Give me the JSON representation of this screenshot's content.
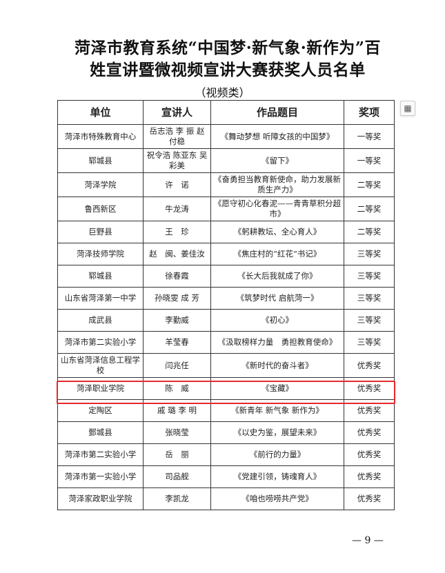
{
  "title_line1": "菏泽市教育系统“中国梦·新气象·新作为”百",
  "title_line2": "姓宣讲暨微视频宣讲大赛获奖人员名单",
  "subtitle": "（视频类）",
  "table": {
    "headers": [
      "单位",
      "宣讲人",
      "作品题目",
      "奖项"
    ],
    "rows": [
      [
        "菏泽市特殊教育中心",
        "岳志浩 李 振 赵付稳",
        "《舞动梦想 听障女孩的中国梦》",
        "一等奖"
      ],
      [
        "郓城县",
        "祝令浩 陈亚东 吴彩美",
        "《留下》",
        "一等奖"
      ],
      [
        "菏泽学院",
        "许　诺",
        "《奋勇担当教育新使命，助力发展新质生产力》",
        "二等奖"
      ],
      [
        "鲁西新区",
        "牛龙涛",
        "《愿守初心化春泥——青青草积分超市》",
        "二等奖"
      ],
      [
        "巨野县",
        "王　珍",
        "《躬耕教坛、全心育人》",
        "二等奖"
      ],
      [
        "菏泽技师学院",
        "赵　闽、姜佳汝",
        "《焦庄村的“红花”书记》",
        "三等奖"
      ],
      [
        "郓城县",
        "徐春霞",
        "《长大后我就成了你》",
        "三等奖"
      ],
      [
        "山东省菏泽第一中学",
        "孙晓雯 成 芳",
        "《筑梦时代 启航菏一》",
        "三等奖"
      ],
      [
        "成武县",
        "李勤威",
        "《初心》",
        "三等奖"
      ],
      [
        "菏泽市第二实验小学",
        "羊莹春",
        "《汲取榜样力量　勇担教育使命》",
        "三等奖"
      ],
      [
        "山东省菏泽信息工程学校",
        "闫兆任",
        "《新时代的奋斗者》",
        "优秀奖"
      ],
      [
        "菏泽职业学院",
        "陈　威",
        "《宝藏》",
        "优秀奖"
      ],
      [
        "定陶区",
        "戚 璐 李 明",
        "《新青年 新气象 新作为》",
        "优秀奖"
      ],
      [
        "鄄城县",
        "张晓莹",
        "《以史为鉴，展望未来》",
        "优秀奖"
      ],
      [
        "菏泽市第二实验小学",
        "岳　丽",
        "《前行的力量》",
        "优秀奖"
      ],
      [
        "菏泽市第一实验小学",
        "司品舰",
        "《党建引领，铸魂育人》",
        "优秀奖"
      ],
      [
        "菏泽家政职业学院",
        "李凯龙",
        "《咱也唠唠共产党》",
        "优秀奖"
      ]
    ]
  },
  "highlight_color": "#e8262a",
  "side_icon": "table-icon",
  "page_number": "— 9 —"
}
